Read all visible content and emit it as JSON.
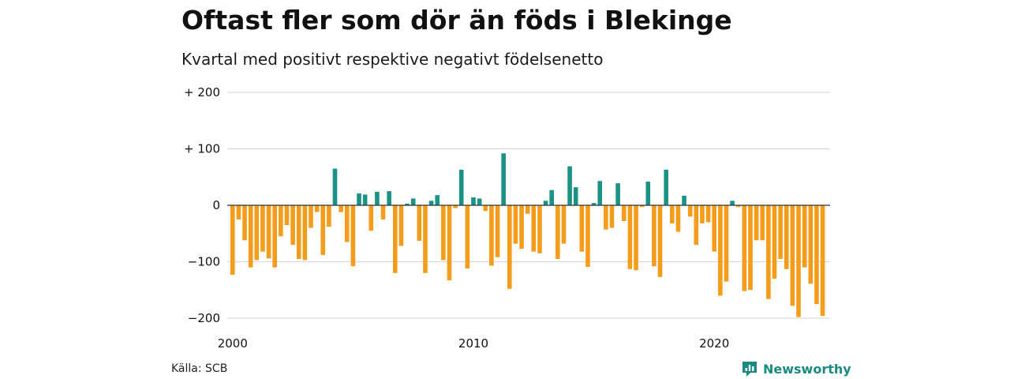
{
  "header": {
    "title": "Oftast fler som dör än föds i Blekinge",
    "subtitle": "Kvartal med positivt respektive negativt födelsenetto"
  },
  "footer": {
    "source": "Källa: SCB",
    "brand": "Newsworthy",
    "brand_icon": "newsworthy-logo-icon"
  },
  "colors": {
    "positive": "#1a9384",
    "negative": "#f59d1a",
    "grid": "#d9d9d9",
    "zero_line": "#333333"
  },
  "chart_data": {
    "type": "bar",
    "title": "Oftast fler som dör än föds i Blekinge",
    "subtitle": "Kvartal med positivt respektive negativt födelsenetto",
    "x_start_year": 2000,
    "x_tick_labels": [
      "2000",
      "2010",
      "2020"
    ],
    "x_tick_years": [
      2000,
      2010,
      2020
    ],
    "y_tick_labels": [
      "+ 200",
      "+ 100",
      "0",
      "−100",
      "−200"
    ],
    "y_tick_values": [
      200,
      100,
      0,
      -100,
      -200
    ],
    "ylim": [
      -200,
      200
    ],
    "grid": true,
    "legend": "none",
    "values": [
      -123,
      -25,
      -62,
      -110,
      -97,
      -82,
      -94,
      -110,
      -55,
      -35,
      -70,
      -95,
      -97,
      -40,
      -12,
      -88,
      -38,
      65,
      -12,
      -65,
      -108,
      21,
      19,
      -45,
      24,
      -25,
      25,
      -120,
      -72,
      3,
      12,
      -63,
      -120,
      8,
      18,
      -97,
      -133,
      -5,
      63,
      -112,
      14,
      12,
      -10,
      -107,
      -92,
      92,
      -148,
      -68,
      -77,
      -15,
      -82,
      -85,
      8,
      27,
      -95,
      -68,
      69,
      32,
      -82,
      -109,
      4,
      43,
      -43,
      -40,
      39,
      -28,
      -113,
      -115,
      -3,
      42,
      -108,
      -127,
      63,
      -32,
      -47,
      17,
      -20,
      -70,
      -32,
      -30,
      -82,
      -160,
      -135,
      8,
      -3,
      -152,
      -150,
      -62,
      -62,
      -166,
      -130,
      -95,
      -113,
      -178,
      -198,
      -110,
      -139,
      -175,
      -196
    ]
  }
}
